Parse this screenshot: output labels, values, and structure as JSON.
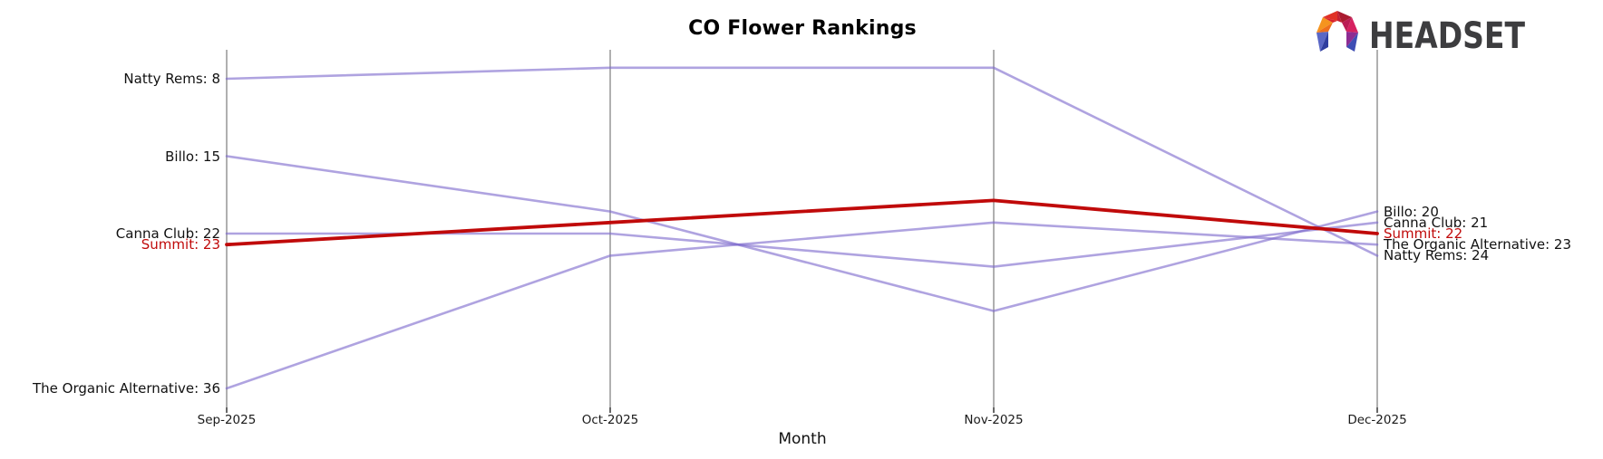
{
  "logo": {
    "text": "HEADSET",
    "icon": "headset-faceted-arch-icon"
  },
  "chart_data": {
    "type": "line",
    "variant": "bump-ranking-chart",
    "title": "CO Flower Rankings",
    "xlabel": "Month",
    "x": [
      "Sep-2025",
      "Oct-2025",
      "Nov-2025",
      "Dec-2025"
    ],
    "y_axis": {
      "unit": "rank",
      "inverted": true,
      "lower_rank_is_higher": true,
      "visible_rank_range": [
        7,
        36
      ]
    },
    "grid": "vertical-month-axes-only",
    "legend_position": "none (direct labels at line ends)",
    "series": [
      {
        "name": "Natty Rems",
        "values": [
          8,
          7,
          7,
          24
        ],
        "color": "#7e6bcd",
        "highlighted": false,
        "label_start": "Natty Rems: 8",
        "label_end": "Natty Rems: 24"
      },
      {
        "name": "Billo",
        "values": [
          15,
          20,
          29,
          20
        ],
        "color": "#7e6bcd",
        "highlighted": false,
        "label_start": "Billo: 15",
        "label_end": "Billo: 20"
      },
      {
        "name": "Canna Club",
        "values": [
          22,
          22,
          25,
          21
        ],
        "color": "#7e6bcd",
        "highlighted": false,
        "label_start": "Canna Club: 22",
        "label_end": "Canna Club: 21"
      },
      {
        "name": "Summit",
        "values": [
          23,
          21,
          19,
          22
        ],
        "color": "#c00a0a",
        "highlighted": true,
        "label_start": "Summit: 23",
        "label_end": "Summit: 22"
      },
      {
        "name": "The Organic Alternative",
        "values": [
          36,
          24,
          21,
          23
        ],
        "color": "#7e6bcd",
        "highlighted": false,
        "label_start": "The Organic Alternative: 36",
        "label_end": "The Organic Alternative: 23"
      }
    ],
    "colors": {
      "line_purple": "#7e6bcd",
      "line_highlight_red": "#c00a0a",
      "axis_gray": "#b0b0b0",
      "tick_dark": "#262626",
      "text": "#111111",
      "logo_text": "#3d3d3f"
    }
  }
}
